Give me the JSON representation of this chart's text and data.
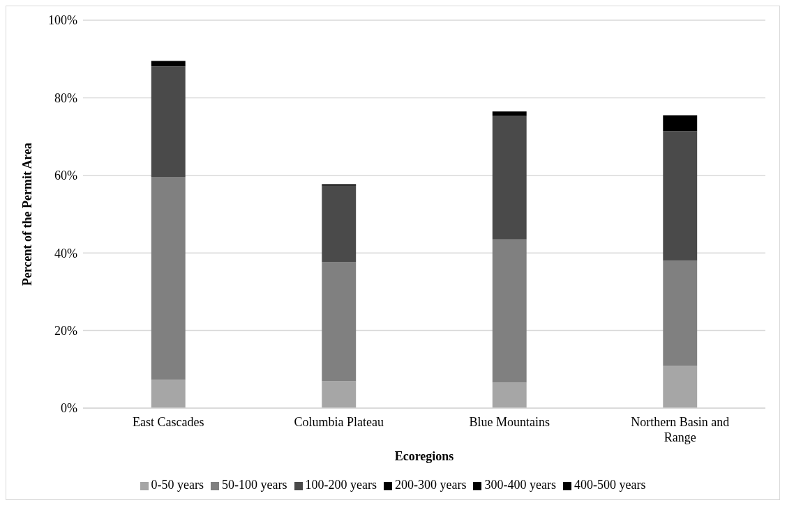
{
  "chart_data": {
    "type": "bar",
    "stacked": true,
    "xlabel": "Ecoregions",
    "ylabel": "Percent  of the Permit Area",
    "categories": [
      "East Cascades",
      "Columbia Plateau",
      "Blue Mountains",
      "Northern Basin and Range"
    ],
    "series": [
      {
        "name": "0-50 years",
        "color": "#a6a6a6",
        "values": [
          7.3,
          6.9,
          6.6,
          10.9
        ]
      },
      {
        "name": "50-100 years",
        "color": "#808080",
        "values": [
          52.3,
          30.7,
          36.9,
          27.1
        ]
      },
      {
        "name": "100-200 years",
        "color": "#4a4a4a",
        "values": [
          28.5,
          19.7,
          31.8,
          33.4
        ]
      },
      {
        "name": "200-300 years",
        "color": "#000000",
        "values": [
          1.4,
          0.4,
          1.2,
          4.1
        ]
      },
      {
        "name": "300-400 years",
        "color": "#000000",
        "values": [
          0,
          0,
          0,
          0
        ]
      },
      {
        "name": "400-500 years",
        "color": "#000000",
        "values": [
          0,
          0,
          0,
          0
        ]
      }
    ],
    "ylim": [
      0,
      100
    ],
    "yticks": [
      {
        "value": 0,
        "label": "0%"
      },
      {
        "value": 20,
        "label": "20%"
      },
      {
        "value": 40,
        "label": "40%"
      },
      {
        "value": 60,
        "label": "60%"
      },
      {
        "value": 80,
        "label": "80%"
      },
      {
        "value": 100,
        "label": "100%"
      }
    ],
    "grid": "y",
    "legend": "bottom"
  }
}
